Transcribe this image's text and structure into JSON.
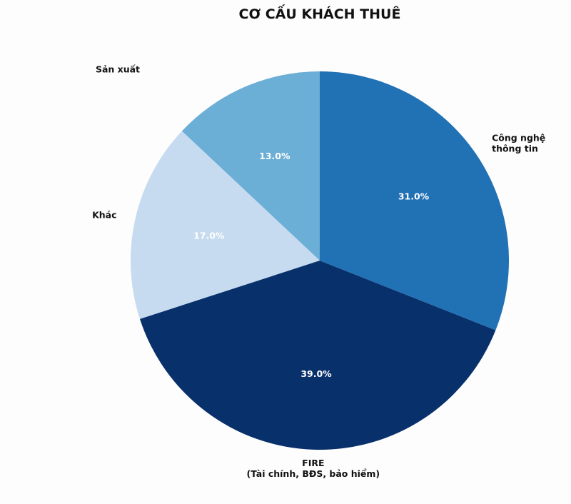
{
  "chart_data": {
    "type": "pie",
    "title": "CƠ CẤU KHÁCH THUÊ",
    "start_angle_deg": 90,
    "direction": "counterclockwise",
    "slices": [
      {
        "label_lines": [
          "Sản xuất"
        ],
        "value": 13.0,
        "pct_label": "13.0%",
        "color": "#6baed6"
      },
      {
        "label_lines": [
          "Khác"
        ],
        "value": 17.0,
        "pct_label": "17.0%",
        "color": "#c6dbef"
      },
      {
        "label_lines": [
          "FIRE",
          "(Tài chính, BĐS, bảo hiểm)"
        ],
        "value": 39.0,
        "pct_label": "39.0%",
        "color": "#08306b"
      },
      {
        "label_lines": [
          "Công nghệ",
          "thông tin"
        ],
        "value": 31.0,
        "pct_label": "31.0%",
        "color": "#2171b5"
      }
    ]
  }
}
